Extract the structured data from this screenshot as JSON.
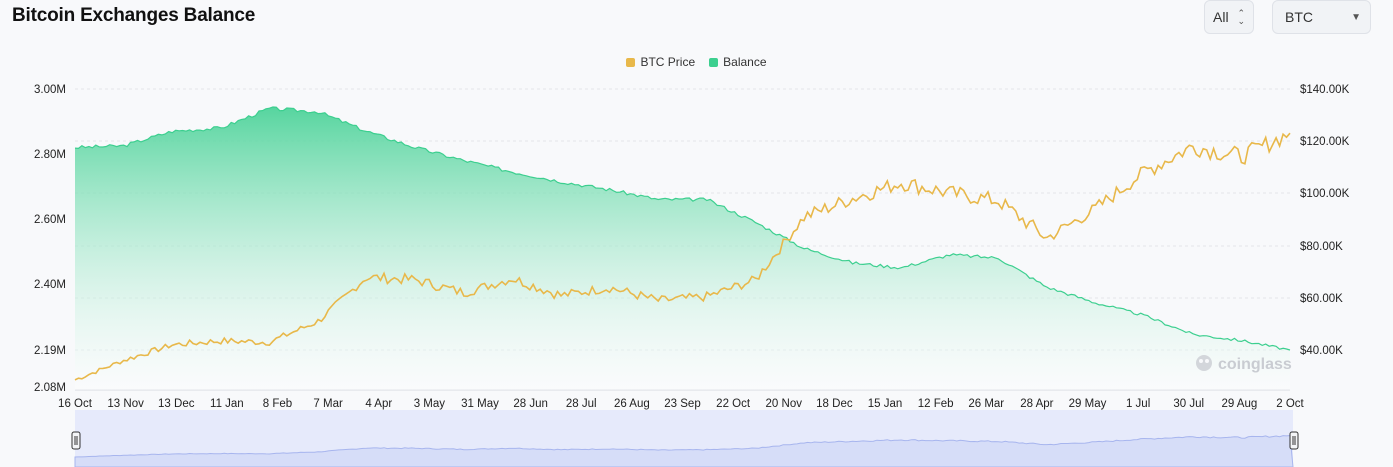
{
  "page": {
    "title": "Bitcoin Exchanges Balance",
    "range_select": "All",
    "asset_select": "BTC",
    "watermark": "coinglass"
  },
  "icons": {
    "range_caret": "up-down-chevron-icon",
    "asset_caret": "caret-down-icon",
    "watermark_logo": "coinglass-logo-icon",
    "slider_handle": "drag-handle-icon"
  },
  "colors": {
    "btc_price": "#e8b84a",
    "balance": "#3ccf8f",
    "balance_fill_top": "#4ed39a",
    "balance_fill_bottom": "#ffffff",
    "navigator_fill": "#dfe5fb",
    "navigator_line": "#aab8ee"
  },
  "chart_data": {
    "type": "line",
    "title": "Bitcoin Exchanges Balance",
    "legend_position": "top-center",
    "grid": true,
    "x_ticks": [
      "16 Oct",
      "13 Nov",
      "13 Dec",
      "11 Jan",
      "8 Feb",
      "7 Mar",
      "4 Apr",
      "3 May",
      "31 May",
      "28 Jun",
      "28 Jul",
      "26 Aug",
      "23 Sep",
      "22 Oct",
      "20 Nov",
      "18 Dec",
      "15 Jan",
      "12 Feb",
      "26 Mar",
      "28 Apr",
      "29 May",
      "1 Jul",
      "30 Jul",
      "29 Aug",
      "2 Oct"
    ],
    "y_left_ticks": [
      "3.00M",
      "2.80M",
      "2.60M",
      "2.40M",
      "2.19M",
      "2.08M"
    ],
    "y_left_tick_values": [
      3000000,
      2800000,
      2600000,
      2400000,
      2190000,
      2080000
    ],
    "y_left_range": [
      2080000,
      3000000
    ],
    "y_right_ticks": [
      "$140.00K",
      "$120.00K",
      "$100.00K",
      "$80.00K",
      "$60.00K",
      "$40.00K"
    ],
    "y_right_tick_values": [
      140000,
      120000,
      100000,
      80000,
      60000,
      40000
    ],
    "y_right_range": [
      26000,
      140000
    ],
    "series": [
      {
        "name": "BTC Price",
        "axis": "right",
        "values": [
          28500,
          36000,
          42000,
          43500,
          43000,
          51000,
          68000,
          67000,
          62000,
          67500,
          61000,
          64000,
          59000,
          60500,
          67000,
          91000,
          98000,
          104000,
          100000,
          97000,
          83000,
          94000,
          108000,
          118000,
          114000,
          123000
        ]
      },
      {
        "name": "Balance",
        "axis": "left",
        "values": [
          2820000,
          2825000,
          2870000,
          2880000,
          2940000,
          2930000,
          2870000,
          2820000,
          2780000,
          2745000,
          2715000,
          2690000,
          2660000,
          2660000,
          2590000,
          2510000,
          2465000,
          2450000,
          2490000,
          2480000,
          2390000,
          2340000,
          2300000,
          2240000,
          2220000,
          2190000
        ]
      }
    ]
  }
}
